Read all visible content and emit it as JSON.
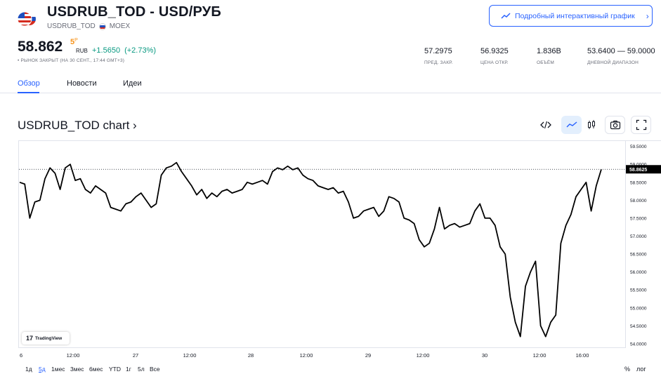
{
  "header": {
    "title": "USDRUB_TOD - USD/РУБ",
    "symbol": "USDRUB_TOD",
    "exchange": "MOEX",
    "interactive_chart_button": "Подробный интерактивный график"
  },
  "quote": {
    "price_main": "58.862",
    "price_superscript": "5",
    "price_currency_mark": "P",
    "currency": "RUB",
    "change": "+1.5650",
    "change_percent": "(+2.73%)",
    "market_status": "• РЫНОК ЗАКРЫТ (НА 30 СЕНТ., 17:44 GMT+3)",
    "change_color": "#089981"
  },
  "stats": [
    {
      "value": "57.2975",
      "label": "ПРЕД. ЗАКР."
    },
    {
      "value": "56.9325",
      "label": "ЦЕНА ОТКР."
    },
    {
      "value": "1.836B",
      "label": "ОБЪЁМ"
    },
    {
      "value": "53.6400 — 59.0000",
      "label": "ДНЕВНОЙ ДИАПАЗОН"
    }
  ],
  "tabs": [
    "Обзор",
    "Новости",
    "Идеи"
  ],
  "chart": {
    "title": "USDRUB_TOD chart ›",
    "last_price_label": "58.8625",
    "tradingview_badge": "TradingView",
    "accent": "#2962ff"
  },
  "chart_data": {
    "type": "line",
    "x_ticks": [
      "6",
      "12:00",
      "27",
      "12:00",
      "28",
      "12:00",
      "29",
      "12:00",
      "30",
      "12:00",
      "16:00"
    ],
    "y_ticks": [
      "59.5000",
      "59.0000",
      "58.5000",
      "58.0000",
      "57.5000",
      "57.0000",
      "56.5000",
      "56.0000",
      "55.5000",
      "55.0000",
      "54.5000",
      "54.0000"
    ],
    "ylim": [
      53.9,
      59.65
    ],
    "last_value": 58.8625,
    "series": [
      {
        "values": [
          58.5,
          58.45,
          57.5,
          57.95,
          58.0,
          58.6,
          58.9,
          58.75,
          58.3,
          58.9,
          59.0,
          58.55,
          58.6,
          58.3,
          58.2,
          58.4,
          58.3,
          58.2,
          57.8,
          57.75,
          57.7,
          57.9,
          57.95,
          58.1,
          58.2,
          58.0,
          57.8,
          57.9,
          58.7,
          58.9,
          58.95,
          59.05,
          58.8,
          58.6,
          58.4,
          58.15,
          58.3,
          58.05,
          58.2,
          58.1,
          58.25,
          58.3,
          58.2,
          58.25,
          58.3,
          58.5,
          58.45,
          58.5,
          58.55,
          58.45,
          58.8,
          58.9,
          58.85,
          58.95,
          58.85,
          58.9,
          58.7,
          58.6,
          58.55,
          58.4,
          58.35,
          58.3,
          58.35,
          58.2,
          58.25,
          57.95,
          57.5,
          57.55,
          57.7,
          57.75,
          57.8,
          57.55,
          57.7,
          58.1,
          58.05,
          57.95,
          57.5,
          57.45,
          57.35,
          56.9,
          56.7,
          56.8,
          57.2,
          57.8,
          57.2,
          57.3,
          57.35,
          57.25,
          57.3,
          57.35,
          57.7,
          57.9,
          57.5,
          57.5,
          57.3,
          56.7,
          56.5,
          55.3,
          54.6,
          54.2,
          55.6,
          56.0,
          56.3,
          54.5,
          54.2,
          54.6,
          54.8,
          56.8,
          57.3,
          57.6,
          58.1,
          58.3,
          58.5,
          57.7,
          58.4,
          58.86
        ]
      }
    ]
  },
  "ranges": [
    "1д",
    "5д",
    "1мес",
    "3мес",
    "6мес",
    "YTD",
    "1г",
    "5л",
    "Все"
  ],
  "active_range": "5д",
  "scale_buttons": {
    "percent": "%",
    "log": "лог"
  }
}
